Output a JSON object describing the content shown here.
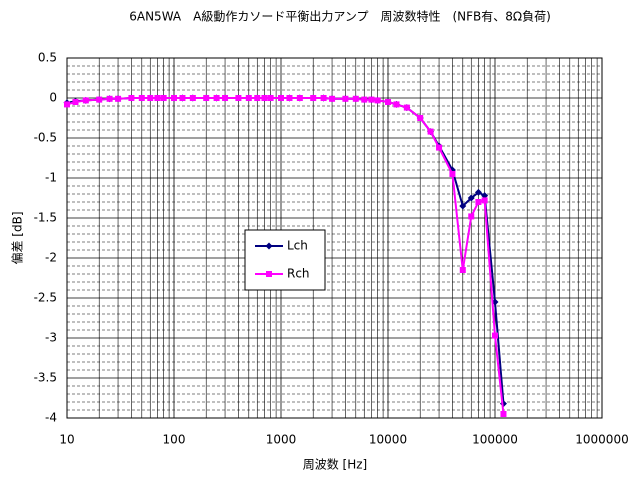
{
  "chart_data": {
    "type": "line",
    "title": "6AN5WA　A級動作カソード平衡出力アンプ　周波数特性　(NFB有、8Ω負荷)",
    "xlabel": "周波数 [Hz]",
    "ylabel": "偏差 [dB]",
    "x": [
      10,
      12,
      15,
      20,
      25,
      30,
      40,
      50,
      60,
      70,
      80,
      100,
      120,
      150,
      200,
      250,
      300,
      400,
      500,
      600,
      700,
      800,
      1000,
      1200,
      1500,
      2000,
      2500,
      3000,
      4000,
      5000,
      6000,
      7000,
      8000,
      10000,
      12000,
      15000,
      20000,
      25000,
      30000,
      40000,
      50000,
      60000,
      70000,
      80000,
      100000,
      120000
    ],
    "series": [
      {
        "name": "Lch",
        "color": "#000080",
        "values": [
          -0.06,
          -0.04,
          -0.03,
          -0.02,
          -0.01,
          -0.01,
          0,
          0,
          0,
          0,
          0,
          0,
          0,
          0,
          0,
          0,
          0,
          0,
          0,
          0,
          0,
          0,
          0,
          0,
          0,
          0,
          0,
          -0.01,
          -0.01,
          -0.01,
          -0.02,
          -0.02,
          -0.03,
          -0.05,
          -0.08,
          -0.12,
          -0.25,
          -0.42,
          -0.6,
          -0.9,
          -1.35,
          -1.25,
          -1.18,
          -1.22,
          -2.55,
          -3.82
        ]
      },
      {
        "name": "Rch",
        "color": "#ff00ff",
        "values": [
          -0.08,
          -0.05,
          -0.03,
          -0.02,
          -0.01,
          -0.01,
          0,
          0,
          0,
          0,
          0,
          0,
          0,
          0,
          0,
          0,
          0,
          0,
          0,
          0,
          0,
          0,
          0,
          0,
          0,
          0,
          0,
          -0.01,
          -0.01,
          -0.01,
          -0.02,
          -0.02,
          -0.03,
          -0.05,
          -0.08,
          -0.12,
          -0.25,
          -0.42,
          -0.62,
          -0.95,
          -2.15,
          -1.48,
          -1.3,
          -1.28,
          -2.97,
          -3.95
        ]
      }
    ],
    "xlog": true,
    "xlim": [
      10,
      1000000
    ],
    "xticks": [
      10,
      100,
      1000,
      10000,
      100000,
      1000000
    ],
    "ylim": [
      -4,
      0.5
    ],
    "yticks": [
      0.5,
      0,
      -0.5,
      -1,
      -1.5,
      -2,
      -2.5,
      -3,
      -3.5,
      -4
    ],
    "grid": true,
    "legend": "center-left"
  }
}
